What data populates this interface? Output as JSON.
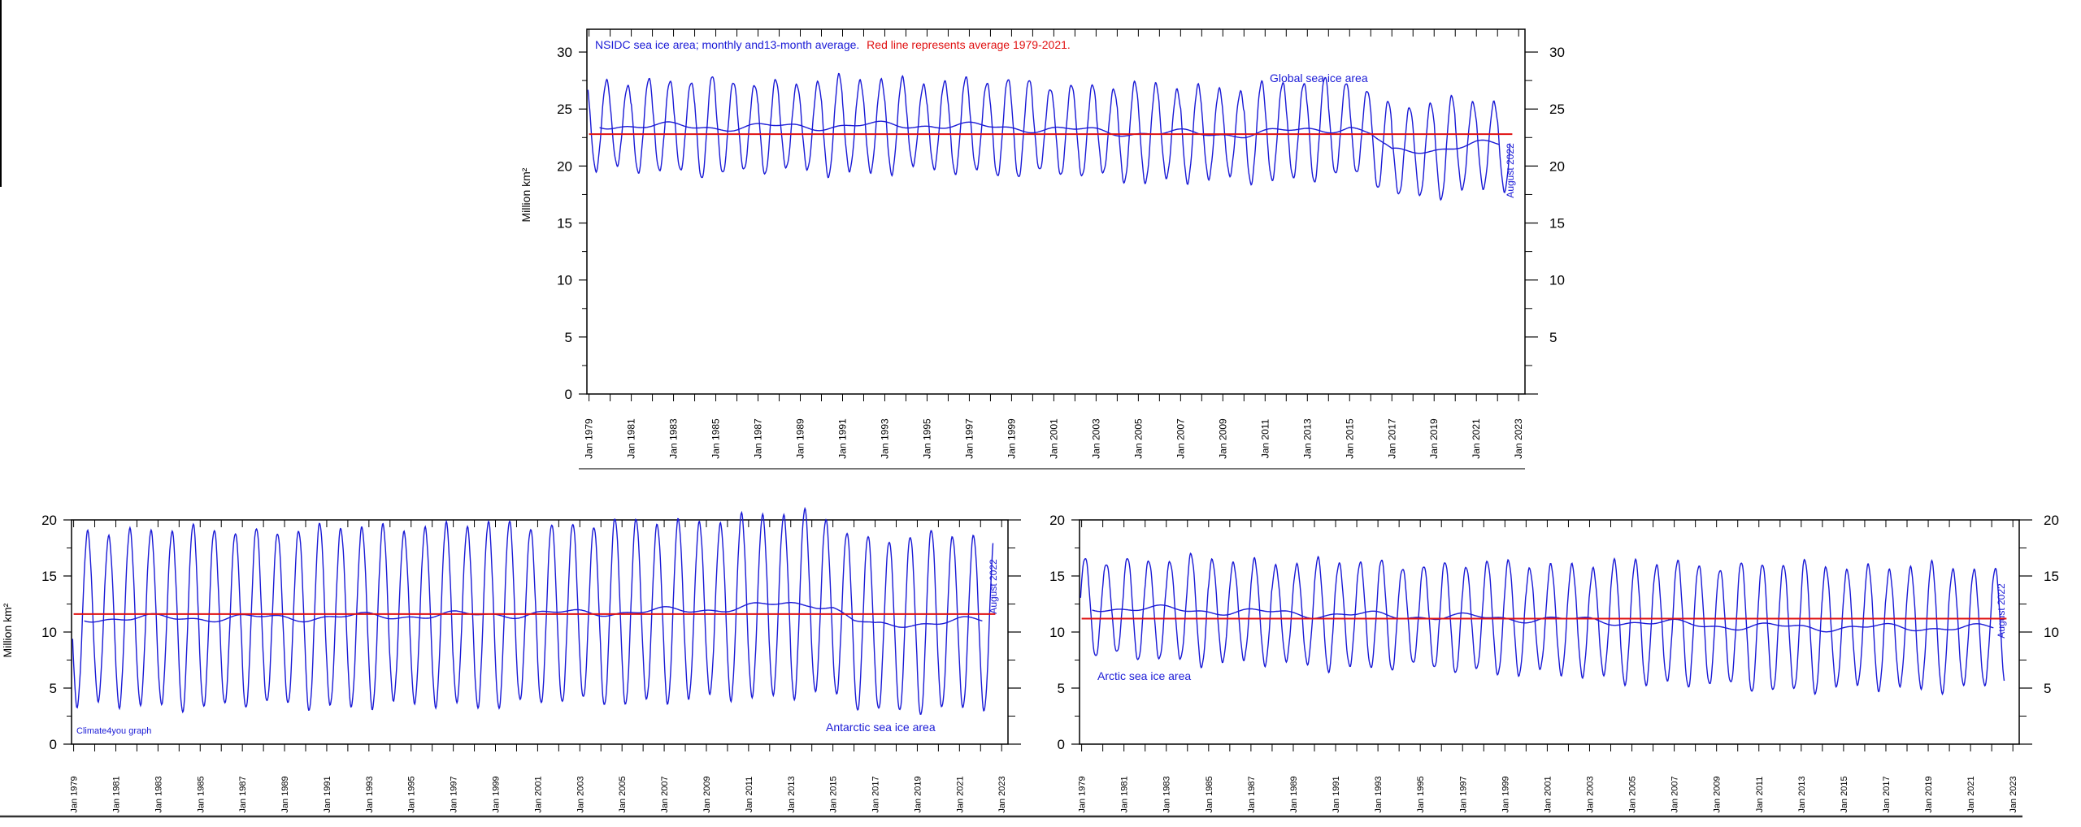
{
  "colors": {
    "series": "#1a1ad6",
    "average": "#e01010",
    "note_blue": "#1a1ad6",
    "note_red": "#e01010",
    "axis": "#000000"
  },
  "chart_data": [
    {
      "id": "global",
      "type": "line",
      "header_note_blue": "NSIDC sea ice area; monthly and13-month average.",
      "header_note_red": "Red line represents average 1979-2021.",
      "title": "Global sea ice area",
      "ylabel": "Million km²",
      "ylim": [
        0,
        32
      ],
      "y_ticks": [
        0,
        5,
        10,
        15,
        20,
        25,
        30
      ],
      "y_ticks_right": [
        5,
        10,
        15,
        20,
        25,
        30
      ],
      "x_ticks": [
        "Jan 1979",
        "Jan 1981",
        "Jan 1983",
        "Jan 1985",
        "Jan 1987",
        "Jan 1989",
        "Jan 1991",
        "Jan 1993",
        "Jan 1995",
        "Jan 1997",
        "Jan 1999",
        "Jan 2001",
        "Jan 2003",
        "Jan 2005",
        "Jan 2007",
        "Jan 2009",
        "Jan 2011",
        "Jan 2013",
        "Jan 2015",
        "Jan 2017",
        "Jan 2019",
        "Jan 2021",
        "Jan 2023"
      ],
      "x_range_years": [
        1978.9,
        2023.3
      ],
      "end_label": "August 2022",
      "average_value": 22.8,
      "series": [
        {
          "name": "monthly",
          "kind": "seasonal",
          "mean_by_year": [
            [
              1979,
              23.6
            ],
            [
              1985,
              23.4
            ],
            [
              1990,
              23.5
            ],
            [
              1995,
              23.6
            ],
            [
              2000,
              23.3
            ],
            [
              2005,
              22.9
            ],
            [
              2010,
              22.8
            ],
            [
              2015,
              23.4
            ],
            [
              2016,
              22.8
            ],
            [
              2017,
              21.2
            ],
            [
              2019,
              21.5
            ],
            [
              2021,
              21.9
            ],
            [
              2022.6,
              21.8
            ]
          ],
          "amplitude_by_year": [
            [
              1979,
              4.0
            ],
            [
              2000,
              4.0
            ],
            [
              2015,
              4.2
            ],
            [
              2017,
              4.0
            ],
            [
              2022.6,
              3.9
            ]
          ],
          "seasonal_peak": "Nov"
        },
        {
          "name": "13-month average",
          "kind": "smooth"
        }
      ]
    },
    {
      "id": "antarctic",
      "type": "line",
      "title": "Antarctic sea ice area",
      "credit": "Climate4you graph",
      "ylabel": "Million km²",
      "ylim": [
        0,
        20
      ],
      "y_ticks": [
        0,
        5,
        10,
        15,
        20
      ],
      "x_ticks": [
        "Jan 1979",
        "Jan 1981",
        "Jan 1983",
        "Jan 1985",
        "Jan 1987",
        "Jan 1989",
        "Jan 1991",
        "Jan 1993",
        "Jan 1995",
        "Jan 1997",
        "Jan 1999",
        "Jan 2001",
        "Jan 2003",
        "Jan 2005",
        "Jan 2007",
        "Jan 2009",
        "Jan 2011",
        "Jan 2013",
        "Jan 2015",
        "Jan 2017",
        "Jan 2019",
        "Jan 2021",
        "Jan 2023"
      ],
      "x_range_years": [
        1978.9,
        2023.3
      ],
      "end_label": "August 2022",
      "average_value": 11.6,
      "series": [
        {
          "name": "monthly",
          "kind": "seasonal",
          "mean_by_year": [
            [
              1979,
              11.2
            ],
            [
              1990,
              11.3
            ],
            [
              2000,
              11.6
            ],
            [
              2008,
              11.9
            ],
            [
              2014,
              12.6
            ],
            [
              2015,
              12.2
            ],
            [
              2016,
              11.0
            ],
            [
              2017,
              10.5
            ],
            [
              2019,
              10.8
            ],
            [
              2021,
              11.0
            ],
            [
              2022.6,
              10.9
            ]
          ],
          "amplitude_by_year": [
            [
              1979,
              7.8
            ],
            [
              2000,
              8.0
            ],
            [
              2014,
              8.0
            ],
            [
              2017,
              7.7
            ],
            [
              2022.6,
              7.8
            ]
          ],
          "seasonal_peak": "Sep"
        },
        {
          "name": "13-month average",
          "kind": "smooth"
        }
      ]
    },
    {
      "id": "arctic",
      "type": "line",
      "title": "Arctic sea ice area",
      "ylabel": "",
      "ylim": [
        0,
        20
      ],
      "y_ticks": [
        0,
        5,
        10,
        15,
        20
      ],
      "y_ticks_right": [
        5,
        10,
        15,
        20
      ],
      "x_ticks": [
        "Jan 1979",
        "Jan 1981",
        "Jan 1983",
        "Jan 1985",
        "Jan 1987",
        "Jan 1989",
        "Jan 1991",
        "Jan 1993",
        "Jan 1995",
        "Jan 1997",
        "Jan 1999",
        "Jan 2001",
        "Jan 2003",
        "Jan 2005",
        "Jan 2007",
        "Jan 2009",
        "Jan 2011",
        "Jan 2013",
        "Jan 2015",
        "Jan 2017",
        "Jan 2019",
        "Jan 2021",
        "Jan 2023"
      ],
      "x_range_years": [
        1978.9,
        2023.3
      ],
      "end_label": "August 2022",
      "average_value": 11.2,
      "series": [
        {
          "name": "monthly",
          "kind": "seasonal",
          "mean_by_year": [
            [
              1979,
              12.2
            ],
            [
              1985,
              11.9
            ],
            [
              1990,
              11.6
            ],
            [
              1995,
              11.4
            ],
            [
              2000,
              11.2
            ],
            [
              2005,
              10.9
            ],
            [
              2010,
              10.5
            ],
            [
              2015,
              10.4
            ],
            [
              2020,
              10.4
            ],
            [
              2022.6,
              10.3
            ]
          ],
          "amplitude_by_year": [
            [
              1979,
              4.4
            ],
            [
              2000,
              4.8
            ],
            [
              2007,
              5.4
            ],
            [
              2012,
              5.6
            ],
            [
              2022.6,
              5.2
            ]
          ],
          "seasonal_peak": "Mar"
        },
        {
          "name": "13-month average",
          "kind": "smooth"
        }
      ]
    }
  ]
}
